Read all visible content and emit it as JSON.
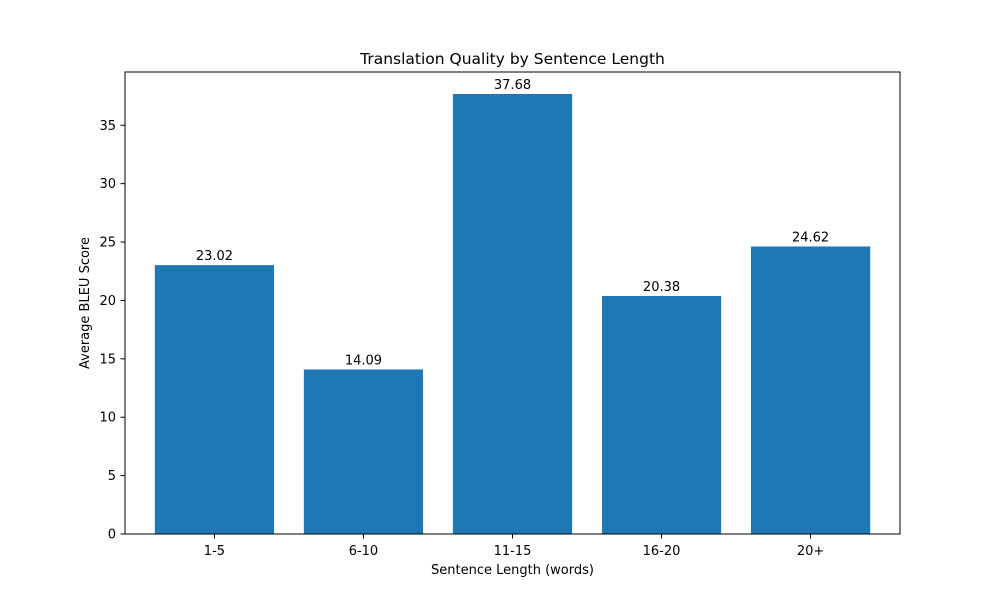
{
  "chart_data": {
    "type": "bar",
    "title": "Translation Quality by Sentence Length",
    "xlabel": "Sentence Length (words)",
    "ylabel": "Average BLEU Score",
    "categories": [
      "1-5",
      "6-10",
      "11-15",
      "16-20",
      "20+"
    ],
    "values": [
      23.02,
      14.09,
      37.68,
      20.38,
      24.62
    ],
    "value_labels": [
      "23.02",
      "14.09",
      "37.68",
      "20.38",
      "24.62"
    ],
    "ylim": [
      0,
      39.56
    ],
    "yticks": [
      0,
      5,
      10,
      15,
      20,
      25,
      30,
      35
    ],
    "ytick_labels": [
      "0",
      "5",
      "10",
      "15",
      "20",
      "25",
      "30",
      "35"
    ],
    "bar_color": "#1f77b4",
    "grid": false,
    "legend": "none"
  }
}
